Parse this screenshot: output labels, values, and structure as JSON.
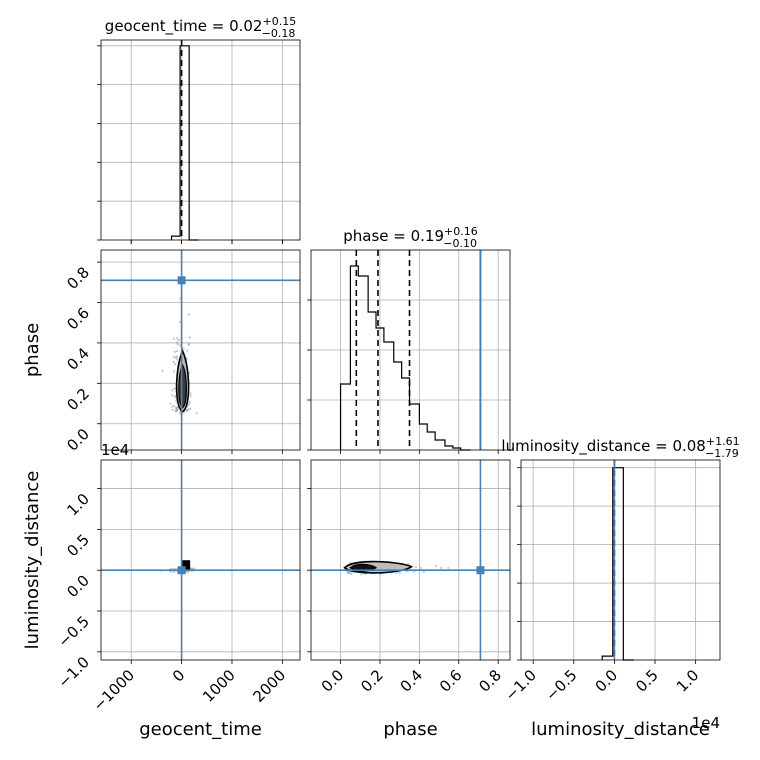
{
  "chart_data": {
    "type": "corner",
    "parameters": [
      "geocent_time",
      "phase",
      "luminosity_distance"
    ],
    "truths": {
      "geocent_time": 0,
      "phase": 0.71,
      "luminosity_distance": 0
    },
    "panels": {
      "geocent_time_hist": {
        "type": "histogram",
        "title_main": "geocent_time = 0.02",
        "title_sup": "+0.15",
        "title_sub": "−0.18",
        "xlim": [
          -1600,
          2350
        ],
        "bins": [
          {
            "x0": -200,
            "x1": -30,
            "count": 2
          },
          {
            "x0": -30,
            "x1": 150,
            "count": 100
          },
          {
            "x0": 150,
            "x1": 330,
            "count": 0
          }
        ],
        "ymax": 103,
        "quantile_lines": [
          0.02
        ],
        "truth": 0
      },
      "phase_hist": {
        "type": "histogram",
        "title_main": "phase = 0.19",
        "title_sup": "+0.16",
        "title_sub": "−0.10",
        "xlim": [
          -0.15,
          0.86
        ],
        "bins": [
          {
            "x0": 0.0,
            "x1": 0.05,
            "count": 33
          },
          {
            "x0": 0.05,
            "x1": 0.09,
            "count": 92
          },
          {
            "x0": 0.09,
            "x1": 0.14,
            "count": 87
          },
          {
            "x0": 0.14,
            "x1": 0.18,
            "count": 69
          },
          {
            "x0": 0.18,
            "x1": 0.22,
            "count": 61
          },
          {
            "x0": 0.22,
            "x1": 0.27,
            "count": 54
          },
          {
            "x0": 0.27,
            "x1": 0.31,
            "count": 44
          },
          {
            "x0": 0.31,
            "x1": 0.35,
            "count": 36
          },
          {
            "x0": 0.35,
            "x1": 0.4,
            "count": 23
          },
          {
            "x0": 0.4,
            "x1": 0.44,
            "count": 13
          },
          {
            "x0": 0.44,
            "x1": 0.48,
            "count": 9
          },
          {
            "x0": 0.48,
            "x1": 0.53,
            "count": 5
          },
          {
            "x0": 0.53,
            "x1": 0.57,
            "count": 2
          },
          {
            "x0": 0.57,
            "x1": 0.61,
            "count": 1
          },
          {
            "x0": 0.61,
            "x1": 0.66,
            "count": 0
          }
        ],
        "ymax": 100,
        "quantile_lines": [
          0.08,
          0.19,
          0.35
        ],
        "truth": 0.71
      },
      "luminosity_distance_hist": {
        "type": "histogram",
        "title_main": "luminosity_distance = 0.08",
        "title_sup": "+1.61",
        "title_sub": "−1.79",
        "xlim": [
          -1.15,
          1.3
        ],
        "bins": [
          {
            "x0": -0.15,
            "x1": -0.02,
            "count": 2
          },
          {
            "x0": -0.02,
            "x1": 0.11,
            "count": 100
          },
          {
            "x0": 0.11,
            "x1": 0.24,
            "count": 0
          }
        ],
        "ymax": 104,
        "quantile_lines": [
          0.0
        ],
        "truth": 0
      },
      "phase_vs_geocent_time": {
        "type": "contour_2d",
        "x": "geocent_time",
        "y": "phase",
        "xlim": [
          -1600,
          2350
        ],
        "ylim": [
          -0.13,
          0.86
        ],
        "yticks": [
          0.0,
          0.2,
          0.4,
          0.6,
          0.8
        ],
        "ylabel": "phase",
        "truth": [
          0,
          0.71
        ]
      },
      "luminosity_distance_vs_geocent_time": {
        "type": "contour_2d",
        "x": "geocent_time",
        "y": "luminosity_distance",
        "xlim": [
          -1600,
          2350
        ],
        "ylim": [
          -1.1,
          1.35
        ],
        "xticks": [
          -1000,
          0,
          1000,
          2000
        ],
        "xtick_labels": [
          "−1000",
          "0",
          "1000",
          "2000"
        ],
        "yticks": [
          -1.0,
          -0.5,
          0.0,
          0.5,
          1.0
        ],
        "ytick_labels": [
          "−1.0",
          "−0.5",
          "0.0",
          "0.5",
          "1.0"
        ],
        "y_offset": "1e4",
        "xlabel": "geocent_time",
        "ylabel": "luminosity_distance",
        "truth": [
          0,
          0
        ]
      },
      "luminosity_distance_vs_phase": {
        "type": "contour_2d",
        "x": "phase",
        "y": "luminosity_distance",
        "xlim": [
          -0.15,
          0.86
        ],
        "ylim": [
          -1.1,
          1.35
        ],
        "xticks": [
          0.0,
          0.2,
          0.4,
          0.6,
          0.8
        ],
        "xtick_labels": [
          "0.0",
          "0.2",
          "0.4",
          "0.6",
          "0.8"
        ],
        "xlabel": "phase",
        "truth": [
          0.71,
          0
        ]
      }
    },
    "luminosity_distance_xticks": [
      -1.0,
      -0.5,
      0.0,
      0.5,
      1.0
    ],
    "luminosity_distance_xtick_labels": [
      "−1.0",
      "−0.5",
      "0.0",
      "0.5",
      "1.0"
    ],
    "luminosity_distance_x_offset": "1e4",
    "luminosity_distance_xlabel": "luminosity_distance",
    "colors": {
      "truth": "#4682b4",
      "hist": "#000000",
      "grid": "#b0b0b0",
      "scatter": "#9a9a9a"
    }
  }
}
